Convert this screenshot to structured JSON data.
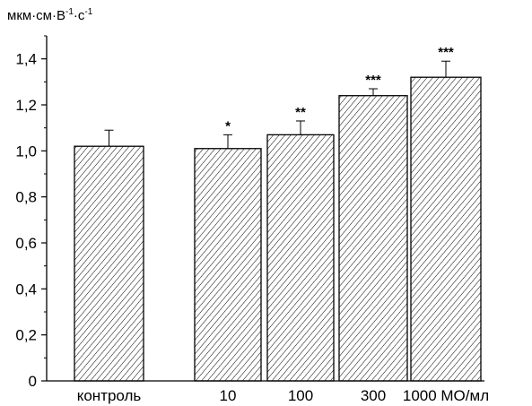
{
  "chart_data": {
    "type": "bar",
    "title": "",
    "ylabel": {
      "unit_main_1": "мкм·см·В",
      "unit_sup_1": "-1",
      "unit_main_2": "·с",
      "unit_sup_2": "-1"
    },
    "xlabel": "",
    "categories": [
      "контроль",
      "10",
      "100",
      "300",
      "1000 МО/мл"
    ],
    "values": [
      1.02,
      1.01,
      1.07,
      1.24,
      1.32
    ],
    "errors": [
      0.07,
      0.06,
      0.06,
      0.03,
      0.07
    ],
    "significance": [
      "",
      "*",
      "**",
      "***",
      "***"
    ],
    "ylim": [
      0,
      1.5
    ],
    "yticks": [
      0,
      0.2,
      0.4,
      0.6,
      0.8,
      1.0,
      1.2,
      1.4
    ],
    "ytick_labels": [
      "0",
      "0,2",
      "0,4",
      "0,6",
      "0,8",
      "1,0",
      "1,2",
      "1,4"
    ],
    "bar_fill": "diagonal-hatch",
    "colors": {
      "bar_stroke": "#000000",
      "hatch": "#000000",
      "background": "#ffffff"
    },
    "grid": false,
    "legend": "none"
  }
}
